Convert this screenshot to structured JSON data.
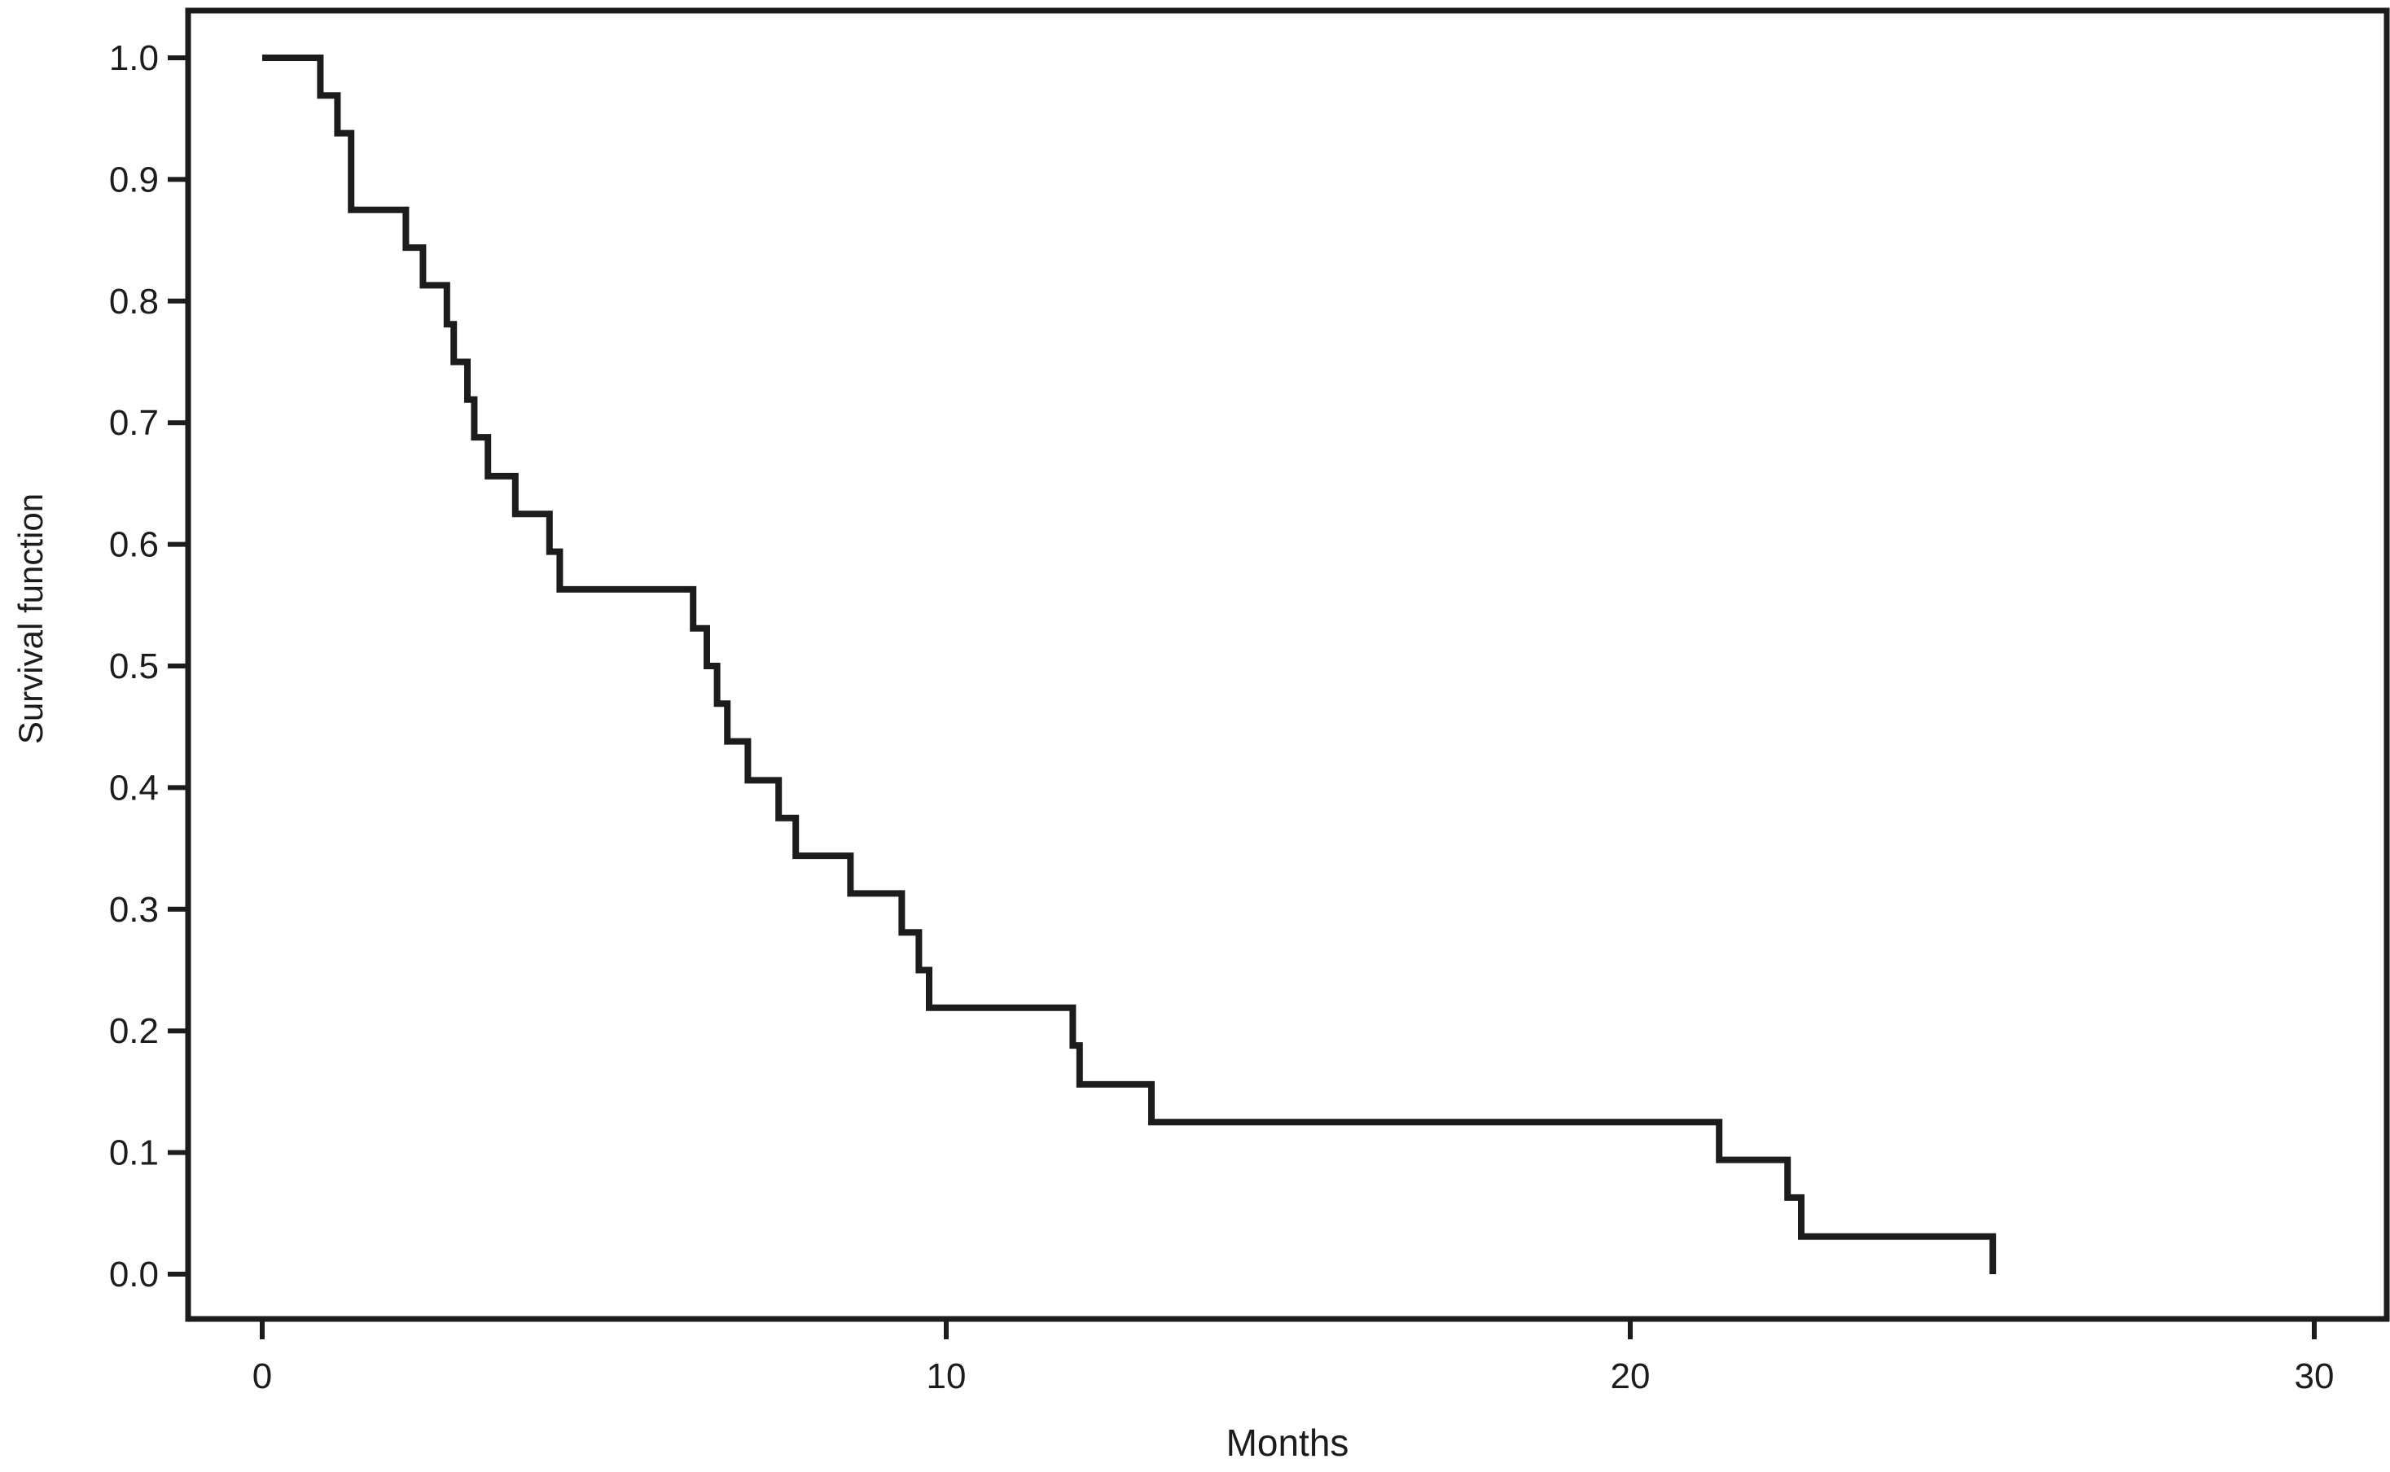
{
  "figure": {
    "background": "#ffffff",
    "line_color": "#1c1c1c",
    "text_color": "#1c1c1c"
  },
  "chart_data": {
    "type": "line",
    "style": "step-post",
    "title": "",
    "xlabel": "Months",
    "ylabel": "Survival function",
    "xlim": [
      -1.1,
      31.1
    ],
    "ylim": [
      -0.04,
      1.04
    ],
    "grid": false,
    "legend": "none",
    "x_ticks": [
      {
        "value": 0,
        "label": "0"
      },
      {
        "value": 10,
        "label": "10"
      },
      {
        "value": 20,
        "label": "20"
      },
      {
        "value": 30,
        "label": "30"
      }
    ],
    "y_ticks": [
      {
        "value": 1.0,
        "label": "1.0"
      },
      {
        "value": 0.9,
        "label": "0.9"
      },
      {
        "value": 0.8,
        "label": "0.8"
      },
      {
        "value": 0.7,
        "label": "0.7"
      },
      {
        "value": 0.6,
        "label": "0.6"
      },
      {
        "value": 0.5,
        "label": "0.5"
      },
      {
        "value": 0.4,
        "label": "0.4"
      },
      {
        "value": 0.3,
        "label": "0.3"
      },
      {
        "value": 0.2,
        "label": "0.2"
      },
      {
        "value": 0.1,
        "label": "0.1"
      },
      {
        "value": 0.0,
        "label": "0.0"
      }
    ],
    "series": [
      {
        "name": "Survival function",
        "color": "#1c1c1c",
        "points": [
          [
            0.0,
            1.0
          ],
          [
            0.85,
            0.969
          ],
          [
            1.1,
            0.938
          ],
          [
            1.3,
            0.875
          ],
          [
            2.1,
            0.844
          ],
          [
            2.35,
            0.813
          ],
          [
            2.7,
            0.781
          ],
          [
            2.8,
            0.75
          ],
          [
            3.0,
            0.719
          ],
          [
            3.1,
            0.688
          ],
          [
            3.3,
            0.656
          ],
          [
            3.7,
            0.625
          ],
          [
            4.2,
            0.594
          ],
          [
            4.35,
            0.563
          ],
          [
            6.3,
            0.531
          ],
          [
            6.5,
            0.5
          ],
          [
            6.65,
            0.469
          ],
          [
            6.8,
            0.438
          ],
          [
            7.1,
            0.406
          ],
          [
            7.55,
            0.375
          ],
          [
            7.8,
            0.344
          ],
          [
            8.6,
            0.313
          ],
          [
            9.35,
            0.281
          ],
          [
            9.6,
            0.25
          ],
          [
            9.75,
            0.219
          ],
          [
            11.85,
            0.188
          ],
          [
            11.95,
            0.156
          ],
          [
            13.0,
            0.125
          ],
          [
            21.3,
            0.094
          ],
          [
            22.3,
            0.063
          ],
          [
            22.5,
            0.031
          ],
          [
            25.3,
            0.0
          ]
        ]
      }
    ]
  }
}
